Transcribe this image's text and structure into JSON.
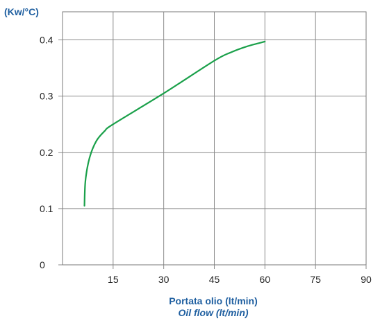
{
  "chart_data": {
    "type": "line",
    "title": "",
    "ylabel": "(Kw/°C)",
    "xlabel": "Portata olio (lt/min)",
    "xlabel_secondary": "Oil flow (lt/min)",
    "xlim": [
      0,
      90
    ],
    "ylim": [
      0,
      0.45
    ],
    "xticks": [
      15,
      30,
      45,
      60,
      75,
      90
    ],
    "xtick_labels": [
      "15",
      "30",
      "45",
      "60",
      "75",
      "90"
    ],
    "yticks": [
      0,
      0.1,
      0.2,
      0.3,
      0.4
    ],
    "ytick_labels": [
      "0",
      "0.1",
      "0.2",
      "0.3",
      "0.4"
    ],
    "grid": true,
    "series": [
      {
        "color": "#1aa04a",
        "x": [
          6.5,
          6.8,
          8,
          10,
          12.5,
          15,
          30,
          45,
          50,
          55,
          60
        ],
        "y": [
          0.105,
          0.15,
          0.19,
          0.22,
          0.238,
          0.25,
          0.305,
          0.363,
          0.378,
          0.389,
          0.397
        ]
      }
    ],
    "colors": {
      "label_blue": "#1f5fa0",
      "grid": "#8a8a8a",
      "text": "#222222"
    }
  }
}
